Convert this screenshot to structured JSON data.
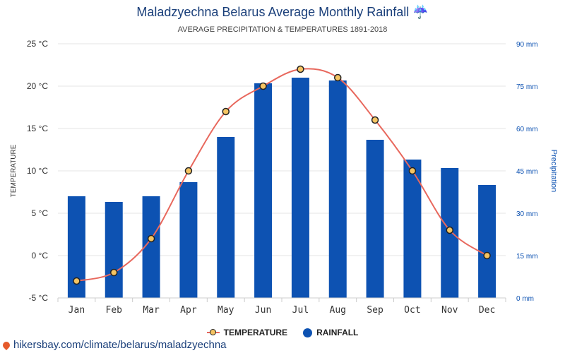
{
  "header": {
    "title": "Maladzyechna Belarus Average Monthly Rainfall ☔",
    "subtitle": "AVERAGE PRECIPITATION & TEMPERATURES 1891-2018"
  },
  "footer": {
    "source": "hikersbay.com/climate/belarus/maladzyechna"
  },
  "chart_data": {
    "type": "bar",
    "title": "Maladzyechna Belarus Average Monthly Rainfall ☔",
    "subtitle": "AVERAGE PRECIPITATION & TEMPERATURES 1891-2018",
    "categories": [
      "Jan",
      "Feb",
      "Mar",
      "Apr",
      "May",
      "Jun",
      "Jul",
      "Aug",
      "Sep",
      "Oct",
      "Nov",
      "Dec"
    ],
    "series": [
      {
        "name": "TEMPERATURE",
        "type": "line",
        "axis": "left",
        "unit": "°C",
        "values": [
          -3,
          -2,
          2,
          10,
          17,
          20,
          22,
          21,
          16,
          10,
          3,
          0
        ],
        "color": "#e8685d",
        "marker_color": "#f5c462"
      },
      {
        "name": "RAINFALL",
        "type": "bar",
        "axis": "right",
        "unit": "mm",
        "values": [
          36,
          34,
          36,
          41,
          57,
          76,
          78,
          77,
          56,
          49,
          46,
          40
        ],
        "color": "#0d52b2"
      }
    ],
    "left_axis": {
      "label": "TEMPERATURE",
      "ylim": [
        -5,
        25
      ],
      "ticks": [
        "-5 °C",
        "0 °C",
        "5 °C",
        "10 °C",
        "15 °C",
        "20 °C",
        "25 °C"
      ]
    },
    "right_axis": {
      "label": "Precipitation",
      "ylim": [
        0,
        90
      ],
      "ticks": [
        "0 mm",
        "15 mm",
        "30 mm",
        "45 mm",
        "60 mm",
        "75 mm",
        "90 mm"
      ]
    },
    "grid": true,
    "legend": "bottom-center",
    "colors": {
      "bar": "#0d52b2",
      "line": "#e8685d",
      "marker": "#f5c462",
      "right_axis_text": "#0d52b2",
      "grid": "#e6e6e6"
    }
  }
}
